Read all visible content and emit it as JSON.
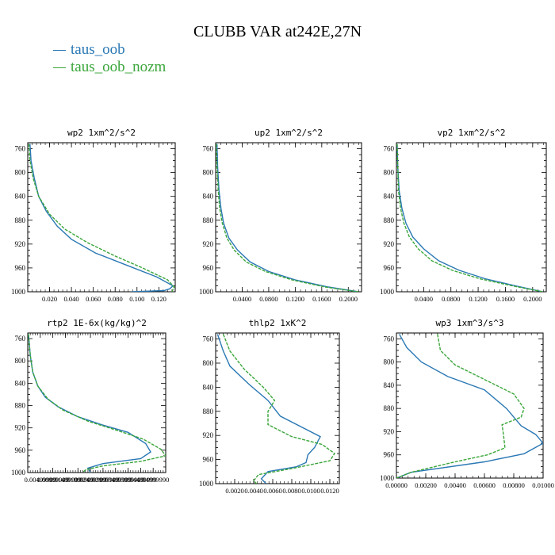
{
  "title": "CLUBB VAR at242E,27N",
  "colors": {
    "series1": "#2a78b4",
    "series2": "#3aa63a"
  },
  "legend": [
    {
      "label": "taus_oob",
      "color": "#2a78b4"
    },
    {
      "label": "taus_oob_nozm",
      "color": "#3aa63a"
    }
  ],
  "chart_data": [
    {
      "type": "line",
      "title": "wp2   1xm^2/s^2",
      "xlim": [
        0.0,
        0.135
      ],
      "ylim": [
        1000,
        750
      ],
      "xticks": [
        0.02,
        0.04,
        0.06,
        0.08,
        0.1,
        0.12
      ],
      "xtick_labels": [
        "0.020",
        "0.040",
        "0.060",
        "0.080",
        "0.100",
        "0.120"
      ],
      "yticks": [
        760,
        800,
        840,
        880,
        920,
        960,
        1000
      ],
      "ytick_labels": [
        "760",
        "800",
        "840",
        "880",
        "920",
        "960",
        "1000"
      ],
      "series": [
        {
          "name": "taus_oob",
          "x": [
            0.002,
            0.003,
            0.006,
            0.01,
            0.017,
            0.027,
            0.04,
            0.062,
            0.09,
            0.118,
            0.133,
            0.13,
            0.125,
            0.095
          ],
          "y": [
            752,
            780,
            810,
            840,
            865,
            890,
            912,
            935,
            955,
            975,
            990,
            995,
            998,
            1000
          ]
        },
        {
          "name": "taus_oob_nozm",
          "x": [
            0.001,
            0.002,
            0.005,
            0.01,
            0.02,
            0.034,
            0.055,
            0.08,
            0.105,
            0.128,
            0.134,
            0.132
          ],
          "y": [
            752,
            780,
            810,
            840,
            870,
            895,
            918,
            940,
            960,
            980,
            992,
            1000
          ]
        }
      ]
    },
    {
      "type": "line",
      "title": "up2   1xm^2/s^2",
      "xlim": [
        0.0,
        0.22
      ],
      "ylim": [
        1000,
        750
      ],
      "xticks": [
        0.04,
        0.08,
        0.12,
        0.16,
        0.2
      ],
      "xtick_labels": [
        "0.0400",
        "0.0800",
        "0.1200",
        "0.1600",
        "0.2000"
      ],
      "yticks": [
        760,
        800,
        840,
        880,
        920,
        960,
        1000
      ],
      "ytick_labels": [
        "760",
        "800",
        "840",
        "880",
        "920",
        "960",
        "1000"
      ],
      "series": [
        {
          "name": "taus_oob",
          "x": [
            0.002,
            0.003,
            0.005,
            0.008,
            0.012,
            0.02,
            0.033,
            0.052,
            0.08,
            0.12,
            0.17,
            0.215
          ],
          "y": [
            752,
            790,
            830,
            860,
            885,
            910,
            930,
            950,
            966,
            980,
            992,
            1000
          ]
        },
        {
          "name": "taus_oob_nozm",
          "x": [
            0.001,
            0.002,
            0.004,
            0.006,
            0.01,
            0.017,
            0.028,
            0.046,
            0.075,
            0.115,
            0.165,
            0.215
          ],
          "y": [
            752,
            790,
            830,
            860,
            885,
            910,
            930,
            950,
            966,
            980,
            992,
            1000
          ]
        }
      ]
    },
    {
      "type": "line",
      "title": "vp2   1xm^2/s^2",
      "xlim": [
        0.0,
        0.22
      ],
      "ylim": [
        1000,
        750
      ],
      "xticks": [
        0.04,
        0.08,
        0.12,
        0.16,
        0.2
      ],
      "xtick_labels": [
        "0.0400",
        "0.0800",
        "0.1200",
        "0.1600",
        "0.2000"
      ],
      "yticks": [
        760,
        800,
        840,
        880,
        920,
        960,
        1000
      ],
      "ytick_labels": [
        "760",
        "800",
        "840",
        "880",
        "920",
        "960",
        "1000"
      ],
      "series": [
        {
          "name": "taus_oob",
          "x": [
            0.001,
            0.002,
            0.004,
            0.008,
            0.014,
            0.024,
            0.04,
            0.062,
            0.092,
            0.13,
            0.175,
            0.215
          ],
          "y": [
            752,
            790,
            830,
            860,
            885,
            908,
            928,
            948,
            964,
            978,
            990,
            1000
          ]
        },
        {
          "name": "taus_oob_nozm",
          "x": [
            0.001,
            0.002,
            0.003,
            0.006,
            0.011,
            0.019,
            0.032,
            0.052,
            0.082,
            0.122,
            0.17,
            0.215
          ],
          "y": [
            752,
            790,
            830,
            860,
            885,
            908,
            928,
            948,
            964,
            978,
            990,
            1000
          ]
        }
      ]
    },
    {
      "type": "line",
      "title": "rtp2   1E-6x(kg/kg)^2",
      "xlim": [
        0.0,
        0.0549999
      ],
      "ylim": [
        1000,
        750
      ],
      "xticks": [
        0.005,
        0.01,
        0.015,
        0.02,
        0.025,
        0.03,
        0.035,
        0.04,
        0.045,
        0.05
      ],
      "xtick_labels": [
        "0.00499999",
        "0.00999999",
        "0.01499999",
        "0.01999999",
        "0.02499999",
        "0.02999999",
        "0.03499999",
        "0.03999999",
        "0.04499999",
        "0.04999990"
      ],
      "yticks": [
        760,
        800,
        840,
        880,
        920,
        960,
        1000
      ],
      "ytick_labels": [
        "760",
        "800",
        "840",
        "880",
        "920",
        "960",
        "1000"
      ],
      "series": [
        {
          "name": "taus_oob",
          "x": [
            0.0003,
            0.001,
            0.002,
            0.004,
            0.007,
            0.012,
            0.02,
            0.03,
            0.04,
            0.047,
            0.049,
            0.045,
            0.03,
            0.024,
            0.025
          ],
          "y": [
            752,
            790,
            820,
            845,
            865,
            882,
            900,
            915,
            928,
            948,
            963,
            975,
            984,
            992,
            1000
          ]
        },
        {
          "name": "taus_oob_nozm",
          "x": [
            0.0003,
            0.001,
            0.002,
            0.004,
            0.008,
            0.014,
            0.024,
            0.036,
            0.046,
            0.053,
            0.055,
            0.045,
            0.03,
            0.023,
            0.022
          ],
          "y": [
            752,
            790,
            820,
            845,
            868,
            888,
            908,
            925,
            940,
            958,
            970,
            980,
            988,
            995,
            1000
          ]
        }
      ]
    },
    {
      "type": "line",
      "title": "thlp2   1xK^2",
      "xlim": [
        0.0,
        0.013
      ],
      "ylim": [
        1000,
        750
      ],
      "xticks": [
        0.002,
        0.004,
        0.006,
        0.008,
        0.01,
        0.012
      ],
      "xtick_labels": [
        "0.0020",
        "0.0040",
        "0.0060",
        "0.0080",
        "0.0100",
        "0.0120"
      ],
      "yticks": [
        760,
        800,
        840,
        880,
        920,
        960,
        1000
      ],
      "ytick_labels": [
        "760",
        "800",
        "840",
        "880",
        "920",
        "960",
        "1000"
      ],
      "series": [
        {
          "name": "taus_oob",
          "x": [
            0.0002,
            0.0008,
            0.0015,
            0.0035,
            0.0055,
            0.0068,
            0.011,
            0.0104,
            0.0097,
            0.0095,
            0.0085,
            0.0055,
            0.0048,
            0.0053
          ],
          "y": [
            752,
            780,
            805,
            835,
            862,
            888,
            922,
            940,
            952,
            965,
            972,
            980,
            992,
            1000
          ]
        },
        {
          "name": "taus_oob_nozm",
          "x": [
            0.0008,
            0.0015,
            0.003,
            0.005,
            0.0062,
            0.0055,
            0.0055,
            0.008,
            0.0112,
            0.0125,
            0.012,
            0.008,
            0.0045,
            0.004,
            0.0043
          ],
          "y": [
            752,
            780,
            810,
            840,
            862,
            880,
            902,
            922,
            935,
            950,
            962,
            975,
            985,
            995,
            1000
          ]
        }
      ]
    },
    {
      "type": "line",
      "title": "wp3   1xm^3/s^3",
      "xlim": [
        0.0,
        0.01
      ],
      "ylim": [
        1000,
        750
      ],
      "xticks": [
        0.0,
        0.002,
        0.004,
        0.006,
        0.008,
        0.01
      ],
      "xtick_labels": [
        "0.00000",
        "0.00200",
        "0.00400",
        "0.00600",
        "0.00800",
        "0.01000"
      ],
      "yticks": [
        760,
        800,
        840,
        880,
        920,
        960,
        1000
      ],
      "ytick_labels": [
        "760",
        "800",
        "840",
        "880",
        "920",
        "960",
        "1000"
      ],
      "series": [
        {
          "name": "taus_oob",
          "x": [
            0.0002,
            0.0007,
            0.0017,
            0.0035,
            0.006,
            0.0075,
            0.008,
            0.0085,
            0.0095,
            0.01,
            0.0087,
            0.006,
            0.001,
            0.0
          ],
          "y": [
            752,
            775,
            800,
            825,
            848,
            880,
            895,
            910,
            925,
            940,
            958,
            972,
            990,
            1000
          ]
        },
        {
          "name": "taus_oob_nozm",
          "x": [
            0.0028,
            0.003,
            0.004,
            0.006,
            0.008,
            0.0087,
            0.0085,
            0.0072,
            0.0073,
            0.0074,
            0.0062,
            0.004,
            0.001,
            0.0
          ],
          "y": [
            752,
            780,
            805,
            830,
            855,
            880,
            895,
            908,
            925,
            948,
            960,
            972,
            990,
            1000
          ]
        }
      ]
    }
  ]
}
